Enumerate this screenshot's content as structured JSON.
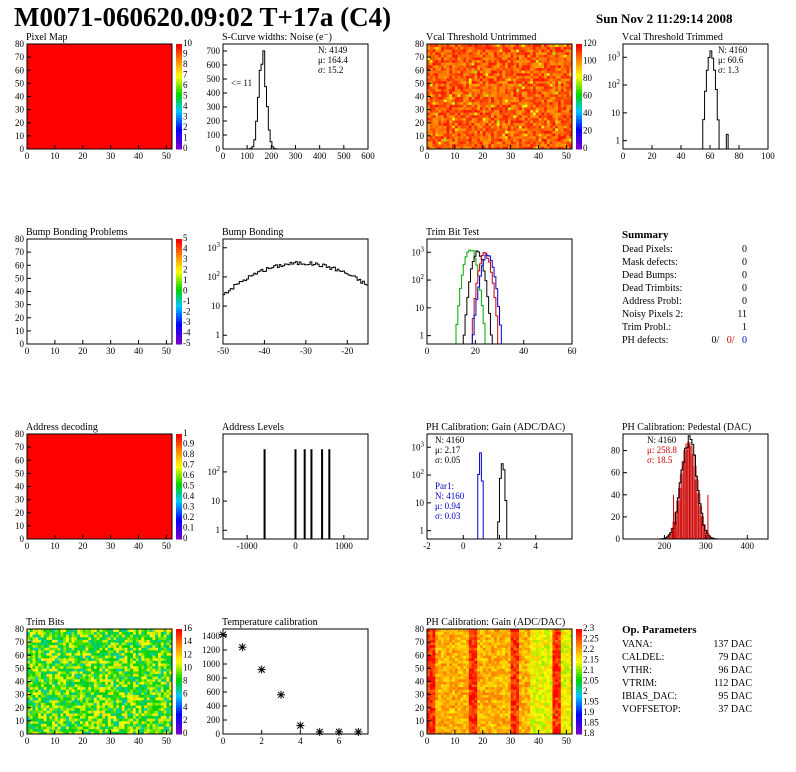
{
  "page": {
    "title": "M0071-060620.09:02 T+17a (C4)",
    "date": "Sun Nov  2 11:29:14 2008"
  },
  "colors": {
    "axis": "#000000",
    "hist": "#000000",
    "red": "#cc0000",
    "blue": "#0000cc",
    "green": "#00aa00"
  },
  "chart_data": [
    {
      "id": "pixel-map",
      "type": "heatmap",
      "title": "Pixel Map",
      "xticks": [
        0,
        10,
        20,
        30,
        40,
        50
      ],
      "yticks": [
        0,
        10,
        20,
        30,
        40,
        50,
        60,
        70,
        80
      ],
      "zticks": [
        0,
        1,
        2,
        3,
        4,
        5,
        6,
        7,
        8,
        9,
        10
      ],
      "fill": "uniform-max",
      "z": 10
    },
    {
      "id": "scurve",
      "type": "bar",
      "title": "S-Curve widths: Noise (e⁻)",
      "xlim": [
        0,
        600
      ],
      "ylim": [
        0,
        750
      ],
      "logy": false,
      "xticks": [
        0,
        100,
        200,
        300,
        400,
        500,
        600
      ],
      "yticks": [
        0,
        100,
        200,
        300,
        400,
        500,
        600,
        700
      ],
      "stats": [
        "N: 4149",
        "μ: 164.4",
        "σ: 15.2"
      ],
      "annotation": "<= 11",
      "peaks": [
        {
          "mean": 164,
          "sigma": 15,
          "height": 720
        }
      ]
    },
    {
      "id": "vcal-untrimmed",
      "type": "heatmap",
      "title": "Vcal Threshold Untrimmed",
      "xticks": [
        0,
        10,
        20,
        30,
        40,
        50
      ],
      "yticks": [
        0,
        10,
        20,
        30,
        40,
        50,
        60,
        70,
        80
      ],
      "zticks": [
        0,
        20,
        40,
        60,
        80,
        100,
        120
      ],
      "fill": "random-orange"
    },
    {
      "id": "vcal-trimmed",
      "type": "bar",
      "title": "Vcal Threshold Trimmed",
      "xlim": [
        0,
        100
      ],
      "logy": true,
      "ylim": [
        0.5,
        3000
      ],
      "xticks": [
        0,
        20,
        40,
        60,
        80,
        100
      ],
      "yticks": [
        1,
        10,
        100,
        1000
      ],
      "stats": [
        "N: 4160",
        "μ: 60.6",
        "σ:  1.3"
      ],
      "peaks": [
        {
          "mean": 60.6,
          "sigma": 1.5,
          "height": 1500
        },
        {
          "mean": 72,
          "sigma": 0.3,
          "height": 2
        }
      ]
    },
    {
      "id": "bump-problems",
      "type": "heatmap",
      "title": "Bump Bonding Problems",
      "xticks": [
        0,
        10,
        20,
        30,
        40,
        50
      ],
      "yticks": [
        0,
        10,
        20,
        30,
        40,
        50,
        60,
        70,
        80
      ],
      "zticks": [
        -5,
        -4,
        -3,
        -2,
        -1,
        0,
        1,
        2,
        3,
        4,
        5
      ],
      "fill": "empty"
    },
    {
      "id": "bump-bonding",
      "type": "bar",
      "title": "Bump Bonding",
      "xlim": [
        -50,
        -15
      ],
      "logy": true,
      "ylim": [
        0.5,
        2000
      ],
      "xticks": [
        -50,
        -40,
        -30,
        -20
      ],
      "yticks": [
        1,
        10,
        100,
        1000
      ],
      "peaks": [
        {
          "mean": -31,
          "sigma": 8.5,
          "height": 300
        }
      ]
    },
    {
      "id": "trim-bit-test",
      "type": "line",
      "title": "Trim Bit Test",
      "xlim": [
        0,
        60
      ],
      "logy": true,
      "ylim": [
        0.5,
        3000
      ],
      "xticks": [
        0,
        20,
        40,
        60
      ],
      "yticks": [
        1,
        10,
        100,
        1000
      ],
      "series": [
        {
          "color": "green",
          "mean": 18,
          "sigma": 1.6,
          "height": 1300
        },
        {
          "color": "black",
          "mean": 21,
          "sigma": 1.5,
          "height": 1100
        },
        {
          "color": "red",
          "mean": 24,
          "sigma": 1.5,
          "height": 900
        },
        {
          "color": "blue",
          "mean": 25,
          "sigma": 1.6,
          "height": 800
        }
      ]
    },
    {
      "id": "address-decoding",
      "type": "heatmap",
      "title": "Address decoding",
      "xticks": [
        0,
        10,
        20,
        30,
        40,
        50
      ],
      "yticks": [
        0,
        10,
        20,
        30,
        40,
        50,
        60,
        70,
        80
      ],
      "zticks": [
        0,
        0.1,
        0.2,
        0.3,
        0.4,
        0.5,
        0.6,
        0.7,
        0.8,
        0.9,
        1
      ],
      "fill": "uniform-max",
      "z": 1
    },
    {
      "id": "address-levels",
      "type": "bar",
      "title": "Address Levels",
      "xlim": [
        -1500,
        1500
      ],
      "logy": true,
      "ylim": [
        0.5,
        2000
      ],
      "xticks": [
        -1000,
        0,
        1000
      ],
      "yticks": [
        1,
        10,
        100
      ],
      "spikes": [
        -640,
        0,
        190,
        330,
        550,
        700
      ]
    },
    {
      "id": "ph-gain",
      "type": "line",
      "title": "PH Calibration: Gain (ADC/DAC)",
      "xlim": [
        -2,
        6
      ],
      "logy": true,
      "ylim": [
        0.5,
        3000
      ],
      "xticks": [
        -2,
        0,
        2,
        4
      ],
      "yticks": [
        1,
        10,
        100,
        1000
      ],
      "stats": [
        "N: 4160",
        "μ: 2.17",
        "σ: 0.05"
      ],
      "stats2": [
        "Par1:",
        "N: 4160",
        "μ: 0.94",
        "σ: 0.03"
      ],
      "series": [
        {
          "color": "black",
          "mean": 2.17,
          "sigma": 0.07,
          "height": 300
        },
        {
          "color": "blue",
          "mean": 0.94,
          "sigma": 0.05,
          "height": 600
        }
      ]
    },
    {
      "id": "ph-pedestal",
      "type": "bar",
      "title": "PH Calibration: Pedestal (DAC)",
      "xlim": [
        100,
        450
      ],
      "ylim": [
        0,
        95
      ],
      "logy": false,
      "xticks": [
        200,
        300,
        400
      ],
      "yticks": [
        0,
        20,
        40,
        60,
        80
      ],
      "stats": [
        "N: 4160",
        "μ: 258.8",
        "σ: 18.5"
      ],
      "peaks": [
        {
          "mean": 258.8,
          "sigma": 18.5,
          "height": 88
        }
      ],
      "fitlines": [
        222,
        305
      ]
    },
    {
      "id": "trim-bits",
      "type": "heatmap",
      "title": "Trim Bits",
      "xticks": [
        0,
        10,
        20,
        30,
        40,
        50
      ],
      "yticks": [
        0,
        10,
        20,
        30,
        40,
        50,
        60,
        70,
        80
      ],
      "zticks": [
        0,
        2,
        4,
        6,
        8,
        10,
        12,
        14,
        16
      ],
      "fill": "random-green"
    },
    {
      "id": "temperature",
      "type": "scatter",
      "title": "Temperature calibration",
      "xlim": [
        0,
        7.5
      ],
      "ylim": [
        0,
        1500
      ],
      "xticks": [
        0,
        2,
        4,
        6
      ],
      "yticks": [
        0,
        200,
        400,
        600,
        800,
        1000,
        1200,
        1400
      ],
      "x": [
        0,
        1,
        2,
        3,
        4,
        5,
        6,
        7
      ],
      "y": [
        1420,
        1240,
        920,
        560,
        120,
        30,
        30,
        30
      ]
    },
    {
      "id": "ph-gain-map",
      "type": "heatmap",
      "title": "PH Calibration: Gain (ADC/DAC)",
      "xticks": [
        0,
        10,
        20,
        30,
        40,
        50
      ],
      "yticks": [
        0,
        10,
        20,
        30,
        40,
        50,
        60,
        70,
        80
      ],
      "zticks": [
        1.8,
        1.85,
        1.9,
        1.95,
        2,
        2.05,
        2.1,
        2.15,
        2.2,
        2.25,
        2.3
      ],
      "fill": "random-yellow"
    }
  ],
  "summary": {
    "title": "Summary",
    "rows": [
      {
        "label": "Dead Pixels:",
        "value": "0"
      },
      {
        "label": "Mask defects:",
        "value": "0"
      },
      {
        "label": "Dead Bumps:",
        "value": "0"
      },
      {
        "label": "Dead Trimbits:",
        "value": "0"
      },
      {
        "label": "Address Probl:",
        "value": "0"
      },
      {
        "label": "Noisy Pixels 2:",
        "value": "11"
      },
      {
        "label": "Trim Probl.:",
        "value": "1"
      }
    ],
    "ph_label": "PH defects:",
    "ph_values": [
      "0/",
      "0/",
      "0"
    ]
  },
  "parameters": {
    "title": "Op. Parameters",
    "rows": [
      {
        "label": "VANA:",
        "value": "137 DAC"
      },
      {
        "label": "CALDEL:",
        "value": "79 DAC"
      },
      {
        "label": "VTHR:",
        "value": "96 DAC"
      },
      {
        "label": "VTRIM:",
        "value": "112 DAC"
      },
      {
        "label": "IBIAS_DAC:",
        "value": "95 DAC"
      },
      {
        "label": "VOFFSETOP:",
        "value": "37 DAC"
      }
    ]
  }
}
